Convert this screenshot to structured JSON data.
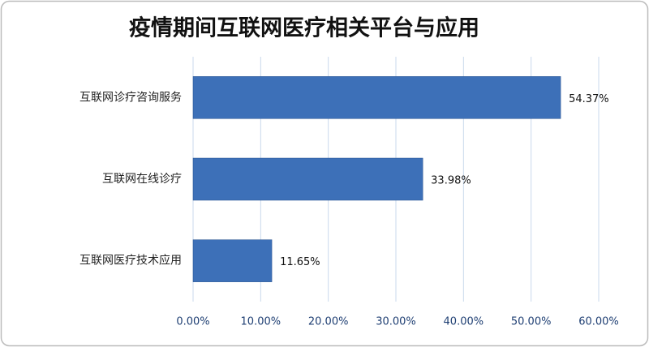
{
  "chart_data": {
    "type": "bar",
    "orientation": "horizontal",
    "title": "疫情期间互联网医疗相关平台与应用",
    "categories": [
      "互联网诊疗咨询服务",
      "互联网在线诊疗",
      "互联网医疗技术应用"
    ],
    "values": [
      54.37,
      33.98,
      11.65
    ],
    "value_labels": [
      "54.37%",
      "33.98%",
      "11.65%"
    ],
    "color": "#3d70b8",
    "xlim": [
      0,
      60
    ],
    "xticks": [
      {
        "value": 0,
        "label": "0.00%"
      },
      {
        "value": 10,
        "label": "10.00%"
      },
      {
        "value": 20,
        "label": "20.00%"
      },
      {
        "value": 30,
        "label": "30.00%"
      },
      {
        "value": 40,
        "label": "40.00%"
      },
      {
        "value": 50,
        "label": "50.00%"
      },
      {
        "value": 60,
        "label": "60.00%"
      }
    ],
    "grid": true
  }
}
